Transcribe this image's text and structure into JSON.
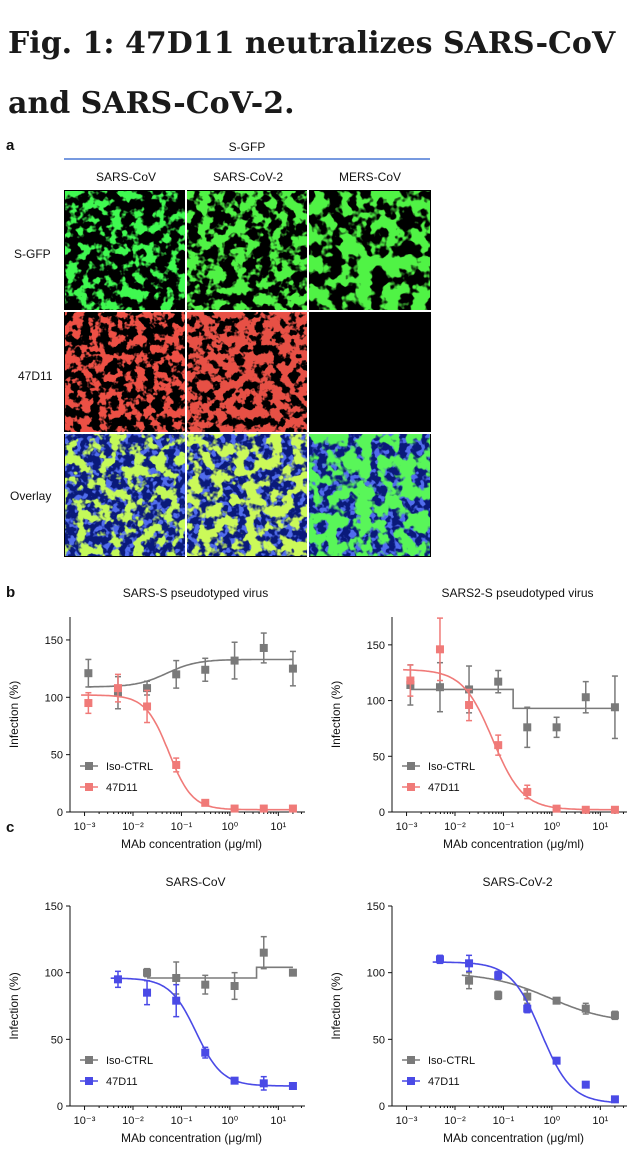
{
  "figure_title": "Fig. 1: 47D11 neutralizes SARS-CoV and SARS-CoV-2.",
  "panel_a": {
    "letter": "a",
    "header": "S-GFP",
    "columns": [
      "SARS-CoV",
      "SARS-CoV-2",
      "MERS-CoV"
    ],
    "rows": [
      "S-GFP",
      "47D11",
      "Overlay"
    ],
    "colors": {
      "gfp": "#1fd61a",
      "red": "#cc1a14",
      "nuclei": "#1233b8",
      "header_line": "#4a78d6"
    }
  },
  "panel_b_letter": "b",
  "panel_c_letter": "c",
  "chart_data": [
    {
      "type": "scatter",
      "title": "SARS-S pseudotyped virus",
      "xlabel": "MAb concentration (μg/ml)",
      "ylabel": "Infection (%)",
      "xscale": "log",
      "xticks": [
        "10⁻³",
        "10⁻²",
        "10⁻¹",
        "10⁰",
        "10¹"
      ],
      "yticks": [
        "0",
        "50",
        "100",
        "150"
      ],
      "ylim": [
        0,
        170
      ],
      "legend_position": "bottom-left",
      "series": [
        {
          "name": "Iso-CTRL",
          "color": "#7a7a7a",
          "x": [
            0.0012,
            0.0049,
            0.0195,
            0.078,
            0.31,
            1.25,
            5,
            20
          ],
          "y": [
            121,
            104,
            108,
            120,
            124,
            132,
            143,
            125
          ],
          "err": [
            12,
            14,
            6,
            12,
            10,
            16,
            13,
            15
          ],
          "fit": "step",
          "fit_params": [
            109,
            133,
            -1.3
          ]
        },
        {
          "name": "47D11",
          "color": "#f07a78",
          "x": [
            0.0012,
            0.0049,
            0.0195,
            0.078,
            0.31,
            1.25,
            5,
            20
          ],
          "y": [
            95,
            108,
            92,
            41,
            8,
            3,
            3,
            3
          ],
          "err": [
            9,
            12,
            14,
            6,
            2,
            1,
            1,
            1
          ],
          "fit": "sigmoid",
          "fit_params": [
            102,
            2,
            0.055,
            1.8
          ]
        }
      ]
    },
    {
      "type": "scatter",
      "title": "SARS2-S pseudotyped virus",
      "xlabel": "MAb concentration (μg/ml)",
      "ylabel": "Infection (%)",
      "xscale": "log",
      "xticks": [
        "10⁻³",
        "10⁻²",
        "10⁻¹",
        "10⁰",
        "10¹"
      ],
      "yticks": [
        "0",
        "50",
        "100",
        "150"
      ],
      "ylim": [
        0,
        175
      ],
      "legend_position": "bottom-left",
      "series": [
        {
          "name": "Iso-CTRL",
          "color": "#7a7a7a",
          "x": [
            0.0012,
            0.0049,
            0.0195,
            0.078,
            0.31,
            1.25,
            5,
            20
          ],
          "y": [
            114,
            112,
            110,
            117,
            76,
            76,
            103,
            94
          ],
          "err": [
            18,
            22,
            21,
            10,
            18,
            9,
            14,
            28
          ],
          "fit": "step",
          "fit_params": [
            110,
            93,
            -0.8
          ]
        },
        {
          "name": "47D11",
          "color": "#f07a78",
          "x": [
            0.0012,
            0.0049,
            0.0195,
            0.078,
            0.31,
            1.25,
            5,
            20
          ],
          "y": [
            118,
            146,
            96,
            60,
            18,
            3,
            2,
            2
          ],
          "err": [
            14,
            28,
            14,
            9,
            6,
            1,
            1,
            1
          ],
          "fit": "sigmoid",
          "fit_params": [
            128,
            2,
            0.06,
            1.4
          ]
        }
      ]
    },
    {
      "type": "scatter",
      "title": "SARS-CoV",
      "xlabel": "MAb concentration (μg/ml)",
      "ylabel": "Infection (%)",
      "xscale": "log",
      "xticks": [
        "10⁻³",
        "10⁻²",
        "10⁻¹",
        "10⁰",
        "10¹"
      ],
      "yticks": [
        "0",
        "50",
        "100",
        "150"
      ],
      "ylim": [
        0,
        150
      ],
      "legend_position": "bottom-left",
      "series": [
        {
          "name": "Iso-CTRL",
          "color": "#7a7a7a",
          "x": [
            0.0195,
            0.078,
            0.31,
            1.25,
            5,
            20
          ],
          "y": [
            100,
            96,
            91,
            90,
            115,
            100
          ],
          "err": [
            3,
            12,
            7,
            10,
            12,
            2
          ],
          "fit": "step",
          "fit_params": [
            96,
            104,
            0.55
          ]
        },
        {
          "name": "47D11",
          "color": "#4a4ae6",
          "x": [
            0.0049,
            0.0195,
            0.078,
            0.31,
            1.25,
            5,
            20
          ],
          "y": [
            95,
            85,
            79,
            40,
            19,
            17,
            15
          ],
          "err": [
            6,
            9,
            12,
            4,
            2,
            5,
            2
          ],
          "fit": "sigmoid",
          "fit_params": [
            96,
            15,
            0.2,
            1.6
          ]
        }
      ]
    },
    {
      "type": "scatter",
      "title": "SARS-CoV-2",
      "xlabel": "MAb concentration (μg/ml)",
      "ylabel": "Infection (%)",
      "xscale": "log",
      "xticks": [
        "10⁻³",
        "10⁻²",
        "10⁻¹",
        "10⁰",
        "10¹"
      ],
      "yticks": [
        "0",
        "50",
        "100",
        "150"
      ],
      "ylim": [
        0,
        150
      ],
      "legend_position": "bottom-left",
      "series": [
        {
          "name": "Iso-CTRL",
          "color": "#7a7a7a",
          "x": [
            0.0195,
            0.078,
            0.31,
            1.25,
            5,
            20
          ],
          "y": [
            94,
            83,
            82,
            79,
            73,
            68
          ],
          "err": [
            6,
            3,
            5,
            2,
            4,
            3
          ],
          "fit": "sigmoid",
          "fit_params": [
            100,
            62,
            0.9,
            0.7
          ]
        },
        {
          "name": "47D11",
          "color": "#4a4ae6",
          "x": [
            0.0049,
            0.0195,
            0.078,
            0.31,
            1.25,
            5,
            20
          ],
          "y": [
            110,
            107,
            98,
            73,
            34,
            16,
            5
          ],
          "err": [
            3,
            6,
            3,
            3,
            2,
            2,
            2
          ],
          "fit": "sigmoid",
          "fit_params": [
            108,
            2,
            0.6,
            1.4
          ]
        }
      ]
    }
  ]
}
